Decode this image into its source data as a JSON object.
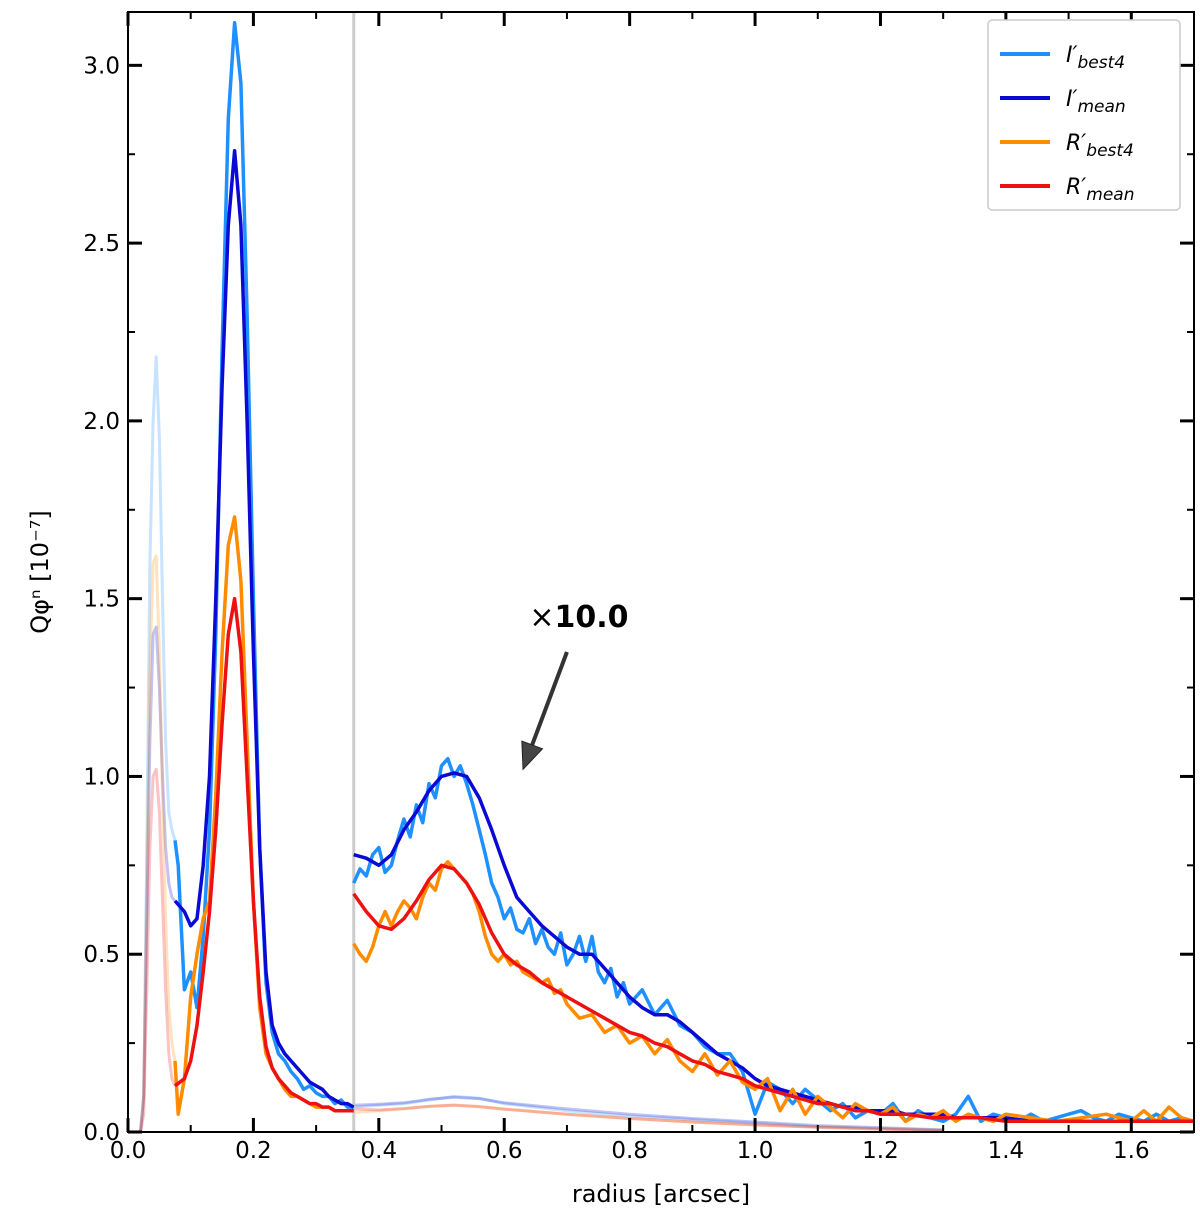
{
  "chart_data": {
    "type": "line",
    "xlabel": "radius [arcsec]",
    "ylabel": "Qφⁿ [10⁻⁷]",
    "xlim": [
      0.0,
      1.7
    ],
    "ylim": [
      0.0,
      3.15
    ],
    "xticks": [
      0.0,
      0.2,
      0.4,
      0.6,
      0.8,
      1.0,
      1.2,
      1.4,
      1.6
    ],
    "yticks": [
      0.0,
      0.5,
      1.0,
      1.5,
      2.0,
      2.5,
      3.0
    ],
    "xtick_labels": [
      "0.0",
      "0.2",
      "0.4",
      "0.6",
      "0.8",
      "1.0",
      "1.2",
      "1.4",
      "1.6"
    ],
    "ytick_labels": [
      "0.0",
      "0.5",
      "1.0",
      "1.5",
      "2.0",
      "2.5",
      "3.0"
    ],
    "legend_position": "top-right",
    "grid": false,
    "vertical_line_x": 0.36,
    "annotation": {
      "prefix": "×",
      "text": "10.0",
      "text_x": 0.64,
      "text_y": 1.42,
      "arrow_from": [
        0.7,
        1.35
      ],
      "arrow_to": [
        0.63,
        1.02
      ]
    },
    "series": [
      {
        "name": "I′best4",
        "color": "#1e90ff",
        "x": [
          0.075,
          0.08,
          0.09,
          0.1,
          0.11,
          0.12,
          0.13,
          0.14,
          0.15,
          0.16,
          0.17,
          0.18,
          0.19,
          0.2,
          0.21,
          0.22,
          0.23,
          0.24,
          0.25,
          0.26,
          0.27,
          0.28,
          0.29,
          0.3,
          0.31,
          0.32,
          0.33,
          0.34,
          0.35,
          0.36
        ],
        "values": [
          0.82,
          0.75,
          0.4,
          0.45,
          0.35,
          0.55,
          0.85,
          1.4,
          2.2,
          2.85,
          3.12,
          2.95,
          2.3,
          1.5,
          0.8,
          0.42,
          0.28,
          0.22,
          0.2,
          0.17,
          0.15,
          0.12,
          0.13,
          0.11,
          0.1,
          0.1,
          0.08,
          0.09,
          0.07,
          0.07
        ]
      },
      {
        "name": "I′mean",
        "color": "#0a0ad4",
        "x": [
          0.075,
          0.09,
          0.1,
          0.11,
          0.12,
          0.13,
          0.14,
          0.15,
          0.16,
          0.17,
          0.18,
          0.19,
          0.2,
          0.21,
          0.22,
          0.23,
          0.24,
          0.25,
          0.26,
          0.27,
          0.28,
          0.29,
          0.3,
          0.31,
          0.32,
          0.33,
          0.34,
          0.35,
          0.36
        ],
        "values": [
          0.65,
          0.62,
          0.58,
          0.6,
          0.75,
          1.0,
          1.5,
          2.1,
          2.55,
          2.76,
          2.55,
          2.0,
          1.35,
          0.8,
          0.45,
          0.3,
          0.25,
          0.22,
          0.2,
          0.18,
          0.16,
          0.14,
          0.13,
          0.12,
          0.1,
          0.09,
          0.08,
          0.08,
          0.07
        ]
      },
      {
        "name": "R′best4",
        "color": "#ff8c00",
        "x": [
          0.075,
          0.08,
          0.09,
          0.1,
          0.11,
          0.12,
          0.13,
          0.14,
          0.15,
          0.16,
          0.17,
          0.18,
          0.19,
          0.2,
          0.21,
          0.22,
          0.23,
          0.24,
          0.25,
          0.26,
          0.27,
          0.28,
          0.29,
          0.3,
          0.31,
          0.32,
          0.33,
          0.34,
          0.35,
          0.36
        ],
        "values": [
          0.2,
          0.05,
          0.15,
          0.38,
          0.5,
          0.6,
          0.65,
          0.95,
          1.35,
          1.65,
          1.73,
          1.55,
          1.1,
          0.65,
          0.35,
          0.22,
          0.18,
          0.15,
          0.12,
          0.1,
          0.1,
          0.09,
          0.08,
          0.07,
          0.07,
          0.07,
          0.06,
          0.06,
          0.06,
          0.06
        ]
      },
      {
        "name": "R′mean",
        "color": "#ee1111",
        "x": [
          0.075,
          0.09,
          0.1,
          0.11,
          0.12,
          0.13,
          0.14,
          0.15,
          0.16,
          0.17,
          0.18,
          0.19,
          0.2,
          0.21,
          0.22,
          0.23,
          0.24,
          0.25,
          0.26,
          0.27,
          0.28,
          0.29,
          0.3,
          0.31,
          0.32,
          0.33,
          0.34,
          0.35,
          0.36
        ],
        "values": [
          0.13,
          0.15,
          0.2,
          0.3,
          0.45,
          0.62,
          0.85,
          1.15,
          1.4,
          1.5,
          1.35,
          1.0,
          0.65,
          0.38,
          0.24,
          0.18,
          0.15,
          0.13,
          0.11,
          0.1,
          0.09,
          0.08,
          0.08,
          0.07,
          0.07,
          0.06,
          0.06,
          0.06,
          0.06
        ]
      }
    ],
    "scaled_series": [
      {
        "name": "I′best4 ×10",
        "color": "#1e90ff",
        "x": [
          0.36,
          0.37,
          0.38,
          0.39,
          0.4,
          0.41,
          0.42,
          0.43,
          0.44,
          0.45,
          0.46,
          0.47,
          0.48,
          0.49,
          0.5,
          0.51,
          0.52,
          0.53,
          0.54,
          0.55,
          0.56,
          0.57,
          0.58,
          0.59,
          0.6,
          0.61,
          0.62,
          0.63,
          0.64,
          0.65,
          0.66,
          0.67,
          0.68,
          0.69,
          0.7,
          0.71,
          0.72,
          0.73,
          0.74,
          0.75,
          0.76,
          0.77,
          0.78,
          0.79,
          0.8,
          0.82,
          0.84,
          0.86,
          0.88,
          0.9,
          0.92,
          0.94,
          0.96,
          0.98,
          1.0,
          1.02,
          1.04,
          1.06,
          1.08,
          1.1,
          1.12,
          1.14,
          1.16,
          1.18,
          1.2,
          1.22,
          1.24,
          1.26,
          1.28,
          1.3,
          1.32,
          1.34,
          1.36,
          1.38,
          1.4,
          1.42,
          1.44,
          1.46,
          1.48,
          1.5,
          1.52,
          1.54,
          1.56,
          1.58,
          1.6,
          1.62,
          1.64,
          1.66,
          1.68,
          1.7
        ],
        "values": [
          0.7,
          0.74,
          0.72,
          0.78,
          0.8,
          0.73,
          0.75,
          0.82,
          0.88,
          0.83,
          0.92,
          0.87,
          0.98,
          0.94,
          1.03,
          1.05,
          1.0,
          1.03,
          0.98,
          0.92,
          0.85,
          0.78,
          0.7,
          0.66,
          0.6,
          0.63,
          0.57,
          0.56,
          0.6,
          0.53,
          0.57,
          0.52,
          0.5,
          0.56,
          0.47,
          0.5,
          0.55,
          0.48,
          0.55,
          0.45,
          0.42,
          0.46,
          0.38,
          0.42,
          0.36,
          0.4,
          0.33,
          0.37,
          0.3,
          0.28,
          0.24,
          0.22,
          0.22,
          0.17,
          0.05,
          0.14,
          0.12,
          0.08,
          0.12,
          0.09,
          0.06,
          0.08,
          0.04,
          0.06,
          0.05,
          0.08,
          0.03,
          0.06,
          0.04,
          0.03,
          0.05,
          0.1,
          0.03,
          0.05,
          0.04,
          0.03,
          0.05,
          0.03,
          0.04,
          0.05,
          0.06,
          0.04,
          0.03,
          0.05,
          0.04,
          0.03,
          0.05,
          0.03,
          0.04,
          0.03
        ]
      },
      {
        "name": "I′mean ×10",
        "color": "#0a0ad4",
        "x": [
          0.36,
          0.38,
          0.4,
          0.42,
          0.44,
          0.46,
          0.48,
          0.5,
          0.52,
          0.54,
          0.56,
          0.58,
          0.6,
          0.62,
          0.64,
          0.66,
          0.68,
          0.7,
          0.72,
          0.74,
          0.76,
          0.78,
          0.8,
          0.82,
          0.84,
          0.86,
          0.88,
          0.9,
          0.92,
          0.94,
          0.96,
          0.98,
          1.0,
          1.02,
          1.04,
          1.06,
          1.08,
          1.1,
          1.12,
          1.14,
          1.16,
          1.18,
          1.2,
          1.22,
          1.24,
          1.26,
          1.28,
          1.3,
          1.32,
          1.34,
          1.36,
          1.38,
          1.4,
          1.44,
          1.48,
          1.52,
          1.56,
          1.6,
          1.64,
          1.68,
          1.7
        ],
        "values": [
          0.78,
          0.77,
          0.75,
          0.78,
          0.85,
          0.9,
          0.96,
          1.0,
          1.01,
          1.0,
          0.94,
          0.85,
          0.75,
          0.66,
          0.62,
          0.58,
          0.55,
          0.52,
          0.5,
          0.5,
          0.46,
          0.42,
          0.38,
          0.35,
          0.33,
          0.33,
          0.31,
          0.28,
          0.25,
          0.22,
          0.2,
          0.18,
          0.15,
          0.13,
          0.12,
          0.11,
          0.1,
          0.09,
          0.08,
          0.07,
          0.07,
          0.06,
          0.06,
          0.06,
          0.05,
          0.05,
          0.05,
          0.05,
          0.04,
          0.04,
          0.04,
          0.04,
          0.04,
          0.03,
          0.03,
          0.03,
          0.03,
          0.03,
          0.03,
          0.03,
          0.03
        ]
      },
      {
        "name": "R′best4 ×10",
        "color": "#ff8c00",
        "x": [
          0.36,
          0.37,
          0.38,
          0.39,
          0.4,
          0.41,
          0.42,
          0.43,
          0.44,
          0.45,
          0.46,
          0.47,
          0.48,
          0.49,
          0.5,
          0.51,
          0.52,
          0.53,
          0.54,
          0.55,
          0.56,
          0.57,
          0.58,
          0.59,
          0.6,
          0.61,
          0.62,
          0.63,
          0.64,
          0.65,
          0.66,
          0.67,
          0.68,
          0.69,
          0.7,
          0.72,
          0.74,
          0.76,
          0.78,
          0.8,
          0.82,
          0.84,
          0.86,
          0.88,
          0.9,
          0.92,
          0.94,
          0.96,
          0.98,
          1.0,
          1.02,
          1.04,
          1.06,
          1.08,
          1.1,
          1.12,
          1.14,
          1.16,
          1.18,
          1.2,
          1.22,
          1.24,
          1.26,
          1.28,
          1.3,
          1.32,
          1.34,
          1.36,
          1.38,
          1.4,
          1.44,
          1.48,
          1.52,
          1.56,
          1.6,
          1.62,
          1.64,
          1.66,
          1.68,
          1.7
        ],
        "values": [
          0.53,
          0.5,
          0.48,
          0.52,
          0.58,
          0.62,
          0.58,
          0.62,
          0.65,
          0.63,
          0.6,
          0.66,
          0.7,
          0.68,
          0.74,
          0.76,
          0.74,
          0.72,
          0.7,
          0.67,
          0.62,
          0.55,
          0.5,
          0.48,
          0.5,
          0.47,
          0.48,
          0.45,
          0.44,
          0.43,
          0.42,
          0.43,
          0.39,
          0.4,
          0.36,
          0.32,
          0.33,
          0.28,
          0.3,
          0.25,
          0.27,
          0.22,
          0.26,
          0.2,
          0.17,
          0.22,
          0.16,
          0.2,
          0.14,
          0.12,
          0.15,
          0.06,
          0.12,
          0.05,
          0.1,
          0.07,
          0.04,
          0.08,
          0.06,
          0.05,
          0.07,
          0.03,
          0.05,
          0.04,
          0.06,
          0.03,
          0.05,
          0.04,
          0.03,
          0.05,
          0.04,
          0.03,
          0.04,
          0.05,
          0.03,
          0.06,
          0.03,
          0.07,
          0.04,
          0.03
        ]
      },
      {
        "name": "R′mean ×10",
        "color": "#ee1111",
        "x": [
          0.36,
          0.38,
          0.4,
          0.42,
          0.44,
          0.46,
          0.48,
          0.5,
          0.52,
          0.54,
          0.56,
          0.58,
          0.6,
          0.62,
          0.64,
          0.66,
          0.68,
          0.7,
          0.72,
          0.74,
          0.76,
          0.78,
          0.8,
          0.82,
          0.84,
          0.86,
          0.88,
          0.9,
          0.92,
          0.94,
          0.96,
          0.98,
          1.0,
          1.02,
          1.04,
          1.06,
          1.08,
          1.1,
          1.12,
          1.14,
          1.16,
          1.18,
          1.2,
          1.24,
          1.28,
          1.32,
          1.36,
          1.4,
          1.44,
          1.48,
          1.52,
          1.56,
          1.6,
          1.64,
          1.68,
          1.7
        ],
        "values": [
          0.67,
          0.62,
          0.58,
          0.57,
          0.6,
          0.65,
          0.71,
          0.75,
          0.74,
          0.7,
          0.64,
          0.56,
          0.5,
          0.47,
          0.45,
          0.42,
          0.4,
          0.38,
          0.36,
          0.34,
          0.32,
          0.3,
          0.28,
          0.27,
          0.25,
          0.24,
          0.22,
          0.2,
          0.19,
          0.17,
          0.16,
          0.15,
          0.13,
          0.12,
          0.11,
          0.1,
          0.09,
          0.08,
          0.08,
          0.07,
          0.06,
          0.06,
          0.05,
          0.05,
          0.04,
          0.04,
          0.04,
          0.03,
          0.03,
          0.03,
          0.03,
          0.03,
          0.03,
          0.03,
          0.03,
          0.03
        ]
      }
    ],
    "faint_series": [
      {
        "name": "I′best4 inner",
        "color": "#1e90ff",
        "x": [
          0.0,
          0.01,
          0.02,
          0.025,
          0.03,
          0.035,
          0.04,
          0.045,
          0.05,
          0.055,
          0.06,
          0.065,
          0.07,
          0.075
        ],
        "values": [
          0.0,
          0.0,
          0.0,
          0.1,
          0.8,
          1.6,
          2.0,
          2.18,
          1.95,
          1.5,
          1.1,
          0.9,
          0.85,
          0.82
        ]
      },
      {
        "name": "I′mean inner",
        "color": "#0a0ad4",
        "x": [
          0.0,
          0.01,
          0.02,
          0.025,
          0.03,
          0.035,
          0.04,
          0.045,
          0.05,
          0.055,
          0.06,
          0.065,
          0.07,
          0.075
        ],
        "values": [
          0.0,
          0.0,
          0.0,
          0.1,
          0.6,
          1.1,
          1.4,
          1.42,
          1.25,
          1.0,
          0.8,
          0.7,
          0.66,
          0.65
        ]
      },
      {
        "name": "R′best4 inner",
        "color": "#ff8c00",
        "x": [
          0.0,
          0.01,
          0.02,
          0.025,
          0.03,
          0.035,
          0.04,
          0.045,
          0.05,
          0.055,
          0.06,
          0.065,
          0.07,
          0.075
        ],
        "values": [
          0.0,
          0.0,
          0.0,
          0.1,
          0.7,
          1.3,
          1.6,
          1.62,
          1.35,
          0.95,
          0.6,
          0.35,
          0.25,
          0.2
        ]
      },
      {
        "name": "R′mean inner",
        "color": "#ee1111",
        "x": [
          0.0,
          0.01,
          0.02,
          0.025,
          0.03,
          0.035,
          0.04,
          0.045,
          0.05,
          0.055,
          0.06,
          0.065,
          0.07,
          0.075
        ],
        "values": [
          0.0,
          0.0,
          0.0,
          0.05,
          0.4,
          0.8,
          1.0,
          1.02,
          0.9,
          0.65,
          0.4,
          0.22,
          0.15,
          0.13
        ]
      },
      {
        "name": "I′best4 outer",
        "color": "#1e90ff",
        "x": [
          0.36,
          0.4,
          0.44,
          0.48,
          0.52,
          0.56,
          0.6,
          0.7,
          0.8,
          0.9,
          1.0,
          1.1,
          1.2,
          1.3
        ],
        "values": [
          0.07,
          0.075,
          0.08,
          0.09,
          0.1,
          0.095,
          0.08,
          0.06,
          0.045,
          0.035,
          0.025,
          0.015,
          0.01,
          0.005
        ]
      },
      {
        "name": "I′mean outer",
        "color": "#0a0ad4",
        "x": [
          0.36,
          0.4,
          0.44,
          0.48,
          0.52,
          0.56,
          0.6,
          0.7,
          0.8,
          0.9,
          1.0,
          1.1,
          1.2,
          1.3
        ],
        "values": [
          0.075,
          0.078,
          0.082,
          0.092,
          0.098,
          0.094,
          0.082,
          0.065,
          0.05,
          0.038,
          0.028,
          0.018,
          0.012,
          0.006
        ]
      },
      {
        "name": "R′best4 outer",
        "color": "#ff8c00",
        "x": [
          0.36,
          0.4,
          0.44,
          0.48,
          0.52,
          0.56,
          0.6,
          0.7,
          0.8,
          0.9,
          1.0,
          1.1,
          1.2,
          1.3
        ],
        "values": [
          0.055,
          0.06,
          0.065,
          0.072,
          0.076,
          0.072,
          0.065,
          0.05,
          0.038,
          0.028,
          0.02,
          0.014,
          0.009,
          0.005
        ]
      },
      {
        "name": "R′mean outer",
        "color": "#ee1111",
        "x": [
          0.36,
          0.4,
          0.44,
          0.48,
          0.52,
          0.56,
          0.6,
          0.7,
          0.8,
          0.9,
          1.0,
          1.1,
          1.2,
          1.3
        ],
        "values": [
          0.065,
          0.062,
          0.066,
          0.072,
          0.075,
          0.071,
          0.064,
          0.05,
          0.038,
          0.028,
          0.02,
          0.013,
          0.008,
          0.004
        ]
      }
    ],
    "legend": [
      {
        "symbol": "I",
        "subscript": "best4",
        "color": "#1e90ff"
      },
      {
        "symbol": "I",
        "subscript": "mean",
        "color": "#0a0ad4"
      },
      {
        "symbol": "R",
        "subscript": "best4",
        "color": "#ff8c00"
      },
      {
        "symbol": "R",
        "subscript": "mean",
        "color": "#ee1111"
      }
    ]
  }
}
